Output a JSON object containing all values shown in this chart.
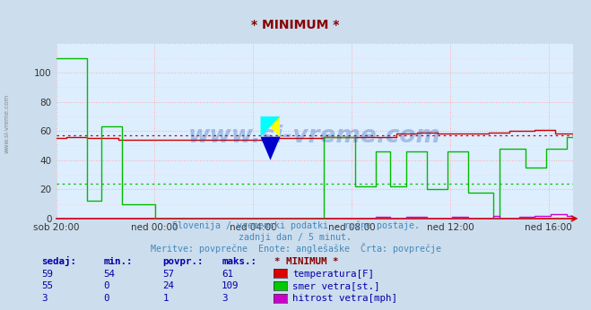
{
  "title": "* MINIMUM *",
  "title_color": "#880000",
  "bg_color": "#ccdded",
  "plot_bg_color": "#ddeeff",
  "grid_color_major": "#ffaaaa",
  "grid_color_minor": "#ffcccc",
  "xlabel_times": [
    "sob 20:00",
    "ned 00:00",
    "ned 04:00",
    "ned 08:00",
    "ned 12:00",
    "ned 16:00"
  ],
  "ylim": [
    0,
    120
  ],
  "yticks": [
    0,
    20,
    40,
    60,
    80,
    100
  ],
  "subtitle1": "Slovenija / vremenski podatki - ročne postaje.",
  "subtitle2": "zadnji dan / 5 minut.",
  "subtitle3": "Meritve: povprečne  Enote: anglešaške  Črta: povprečje",
  "subtitle_color": "#4488bb",
  "table_header": [
    "sedaj:",
    "min.:",
    "povpr.:",
    "maks.:",
    "* MINIMUM *"
  ],
  "table_header_num_color": "#0000aa",
  "table_header_title_color": "#880000",
  "table_rows": [
    [
      59,
      54,
      57,
      61,
      "temperatura[F]",
      "#dd0000"
    ],
    [
      55,
      0,
      24,
      109,
      "smer vetra[st.]",
      "#00cc00"
    ],
    [
      3,
      0,
      1,
      3,
      "hitrost vetra[mph]",
      "#cc00cc"
    ]
  ],
  "temp_color": "#cc0000",
  "wind_dir_color": "#00bb00",
  "wind_speed_color": "#cc00cc",
  "watermark_color": "#1144aa",
  "temp_avg": 57,
  "wind_dir_avg": 24,
  "axis_color": "#cc0000",
  "side_label_color": "#888888"
}
